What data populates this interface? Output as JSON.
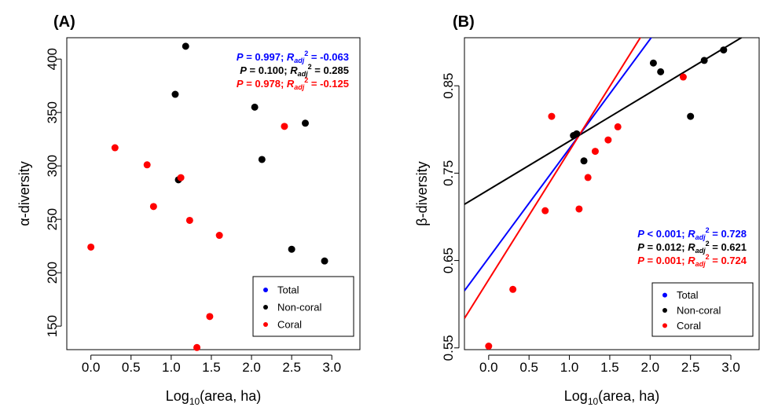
{
  "colors": {
    "total": "#0000ff",
    "non_coral": "#000000",
    "coral": "#ff0000"
  },
  "chart_data": [
    {
      "type": "scatter",
      "panel": "(A)",
      "xlabel": "Log10(area, ha)",
      "xlabel_base": "Log",
      "xlabel_sub": "10",
      "xlabel_rest": "(area, ha)",
      "ylabel": "α-diversity",
      "xlim": [
        -0.3,
        3.35
      ],
      "ylim": [
        128,
        420
      ],
      "xticks": [
        "0.0",
        "0.5",
        "1.0",
        "1.5",
        "2.0",
        "2.5",
        "3.0"
      ],
      "yticks": [
        "150",
        "200",
        "250",
        "300",
        "350",
        "400"
      ],
      "stats": [
        {
          "series": "Total",
          "p": "P = 0.997; ",
          "r": "R",
          "sub": "adj",
          "sup": "2",
          "val": " = -0.063"
        },
        {
          "series": "Non-coral",
          "p": "P = 0.100; ",
          "r": "R",
          "sub": "adj",
          "sup": "2",
          "val": " = 0.285"
        },
        {
          "series": "Coral",
          "p": "P = 0.978; ",
          "r": "R",
          "sub": "adj",
          "sup": "2",
          "val": " = -0.125"
        }
      ],
      "legend": [
        "Total",
        "Non-coral",
        "Coral"
      ],
      "legend_position": "bottom-right",
      "series": [
        {
          "name": "Non-coral",
          "points": [
            [
              1.18,
              412
            ],
            [
              1.05,
              367
            ],
            [
              1.09,
              287
            ],
            [
              2.04,
              355
            ],
            [
              2.13,
              306
            ],
            [
              2.67,
              340
            ],
            [
              2.5,
              222
            ],
            [
              2.91,
              211
            ]
          ]
        },
        {
          "name": "Coral",
          "points": [
            [
              0.0,
              224
            ],
            [
              0.3,
              317
            ],
            [
              0.7,
              301
            ],
            [
              0.78,
              262
            ],
            [
              1.12,
              289
            ],
            [
              1.23,
              249
            ],
            [
              1.6,
              235
            ],
            [
              1.48,
              159
            ],
            [
              1.32,
              130
            ],
            [
              2.41,
              337
            ]
          ]
        }
      ],
      "lines": []
    },
    {
      "type": "scatter",
      "panel": "(B)",
      "xlabel": "Log10(area, ha)",
      "xlabel_base": "Log",
      "xlabel_sub": "10",
      "xlabel_rest": "(area, ha)",
      "ylabel": "β-diversity",
      "xlim": [
        -0.3,
        3.35
      ],
      "ylim": [
        0.548,
        0.905
      ],
      "xticks": [
        "0.0",
        "0.5",
        "1.0",
        "1.5",
        "2.0",
        "2.5",
        "3.0"
      ],
      "yticks": [
        "0.55",
        "0.65",
        "0.75",
        "0.85"
      ],
      "stats": [
        {
          "series": "Total",
          "p": "P < 0.001; ",
          "r": "R",
          "sub": "adj",
          "sup": "2",
          "val": " = 0.728"
        },
        {
          "series": "Non-coral",
          "p": "P = 0.012; ",
          "r": "R",
          "sub": "adj",
          "sup": "2",
          "val": " = 0.621"
        },
        {
          "series": "Coral",
          "p": "P = 0.001; ",
          "r": "R",
          "sub": "adj",
          "sup": "2",
          "val": " = 0.724"
        }
      ],
      "legend": [
        "Total",
        "Non-coral",
        "Coral"
      ],
      "legend_position": "bottom-right",
      "series": [
        {
          "name": "Non-coral",
          "points": [
            [
              1.18,
              0.764
            ],
            [
              1.05,
              0.793
            ],
            [
              1.09,
              0.795
            ],
            [
              2.04,
              0.876
            ],
            [
              2.13,
              0.866
            ],
            [
              2.67,
              0.879
            ],
            [
              2.5,
              0.815
            ],
            [
              2.91,
              0.891
            ]
          ]
        },
        {
          "name": "Coral",
          "points": [
            [
              0.0,
              0.552
            ],
            [
              0.3,
              0.617
            ],
            [
              0.7,
              0.707
            ],
            [
              0.78,
              0.815
            ],
            [
              1.12,
              0.709
            ],
            [
              1.23,
              0.745
            ],
            [
              1.32,
              0.775
            ],
            [
              1.48,
              0.788
            ],
            [
              1.6,
              0.803
            ],
            [
              2.41,
              0.86
            ]
          ]
        }
      ],
      "lines": [
        {
          "series": "Non-coral",
          "intercept": 0.731,
          "slope": 0.0556
        },
        {
          "series": "Total",
          "intercept": 0.653,
          "slope": 0.1252
        },
        {
          "series": "Coral",
          "intercept": 0.628,
          "slope": 0.1475
        }
      ]
    }
  ]
}
